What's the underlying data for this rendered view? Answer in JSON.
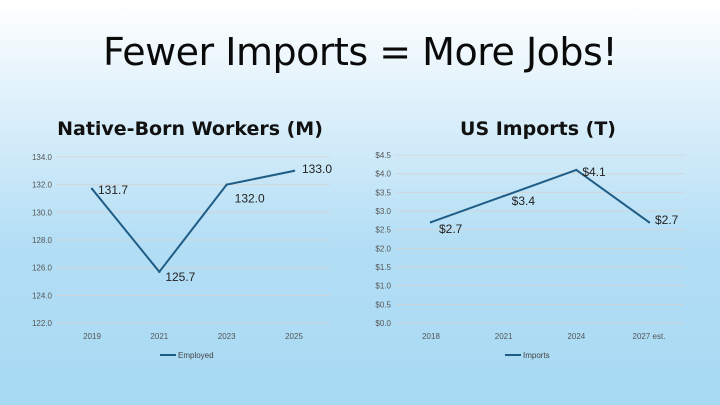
{
  "slide": {
    "title": "Fewer Imports = More Jobs!"
  },
  "chart_data": [
    {
      "type": "line",
      "title": "Native-Born Workers (M)",
      "categories": [
        "2019",
        "2021",
        "2023",
        "2025"
      ],
      "series": [
        {
          "name": "Employed",
          "values": [
            131.7,
            125.7,
            132.0,
            133.0
          ]
        }
      ],
      "ylim": [
        122.0,
        134.0
      ],
      "yticks": [
        "122.0",
        "124.0",
        "126.0",
        "128.0",
        "130.0",
        "132.0",
        "134.0"
      ],
      "data_labels": [
        "131.7",
        "125.7",
        "132.0",
        "133.0"
      ],
      "color": "#1f5d86",
      "grid": true,
      "legend": "bottom"
    },
    {
      "type": "line",
      "title": "US Imports (T)",
      "categories": [
        "2018",
        "2021",
        "2024",
        "2027 est."
      ],
      "series": [
        {
          "name": "Imports",
          "values": [
            2.7,
            3.4,
            4.1,
            2.7
          ]
        }
      ],
      "ylim": [
        0.0,
        4.5
      ],
      "yticks": [
        "$0.0",
        "$0.5",
        "$1.0",
        "$1.5",
        "$2.0",
        "$2.5",
        "$3.0",
        "$3.5",
        "$4.0",
        "$4.5"
      ],
      "data_labels": [
        "$2.7",
        "$3.4",
        "$4.1",
        "$2.7"
      ],
      "color": "#1f5d86",
      "grid": true,
      "legend": "bottom"
    }
  ]
}
